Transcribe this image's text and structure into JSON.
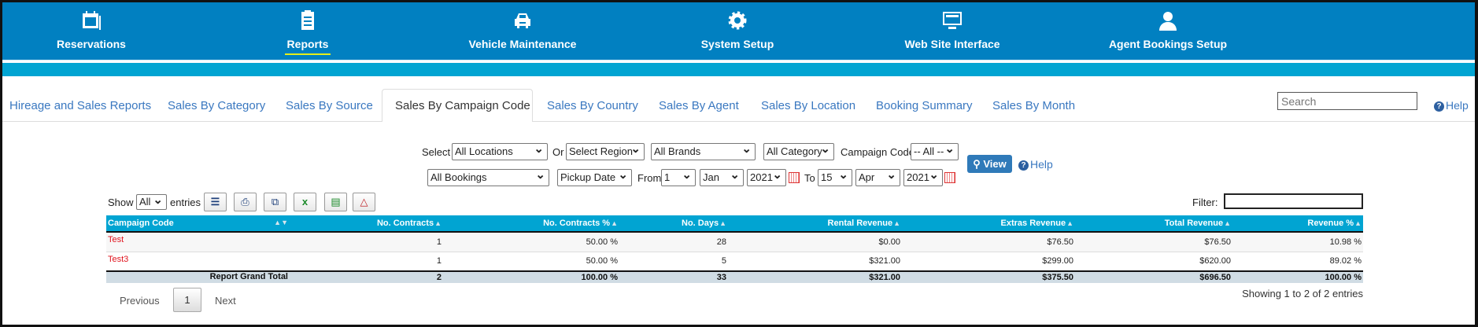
{
  "nav": [
    {
      "label": "Reservations",
      "icon": "calendar-icon"
    },
    {
      "label": "Reports",
      "icon": "checklist-icon",
      "active": true
    },
    {
      "label": "Vehicle Maintenance",
      "icon": "car-icon"
    },
    {
      "label": "System Setup",
      "icon": "gear-icon"
    },
    {
      "label": "Web Site Interface",
      "icon": "monitor-icon"
    },
    {
      "label": "Agent Bookings Setup",
      "icon": "agent-icon"
    }
  ],
  "tabs": [
    "Hireage and Sales Reports",
    "Sales By Category",
    "Sales By Source",
    "Sales By Campaign Code",
    "Sales By Country",
    "Sales By Agent",
    "Sales By Location",
    "Booking Summary",
    "Sales By Month"
  ],
  "active_tab": "Sales By Campaign Code",
  "search": {
    "placeholder": "Search"
  },
  "help": "Help",
  "filters": {
    "select_label": "Select",
    "location": "All Locations",
    "or_label": "Or",
    "region": "Select Region",
    "brand": "All Brands",
    "category": "All Category",
    "campaign_label": "Campaign Code",
    "campaign": "-- All --",
    "bookings": "All Bookings",
    "date_type": "Pickup Date",
    "from_label": "From",
    "from_day": "1",
    "from_month": "Jan",
    "from_year": "2021",
    "to_label": "To",
    "to_day": "15",
    "to_month": "Apr",
    "to_year": "2021",
    "view": "View",
    "help": "Help"
  },
  "table_controls": {
    "show": "Show",
    "entries_value": "All",
    "entries": "entries",
    "filter": "Filter:",
    "filter_value": ""
  },
  "columns": [
    "Campaign Code",
    "No. Contracts",
    "No. Contracts %",
    "No. Days",
    "Rental Revenue",
    "Extras Revenue",
    "Total Revenue",
    "Revenue %"
  ],
  "rows": [
    [
      "Test",
      "1",
      "50.00 %",
      "28",
      "$0.00",
      "$76.50",
      "$76.50",
      "10.98 %"
    ],
    [
      "Test3",
      "1",
      "50.00 %",
      "5",
      "$321.00",
      "$299.00",
      "$620.00",
      "89.02 %"
    ]
  ],
  "total": [
    "Report Grand Total",
    "2",
    "100.00 %",
    "33",
    "$321.00",
    "$375.50",
    "$696.50",
    "100.00 %"
  ],
  "pagination": {
    "previous": "Previous",
    "page": "1",
    "next": "Next",
    "info": "Showing 1 to 2 of 2 entries"
  },
  "colors": {
    "nav": "#0180c1",
    "band": "#01a4d2",
    "link": "#3a78c0",
    "code": "#e0141e"
  }
}
